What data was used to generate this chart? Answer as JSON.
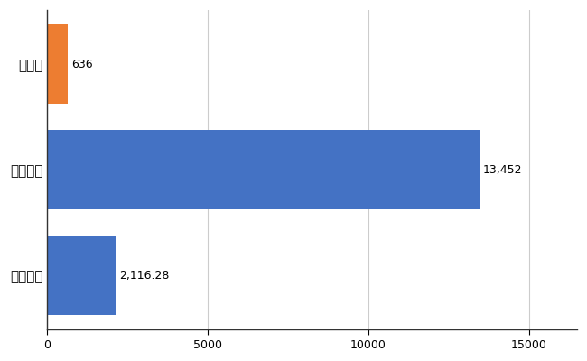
{
  "categories": [
    "全国平均",
    "全国最大",
    "島根県"
  ],
  "values": [
    2116.28,
    13452,
    636
  ],
  "bar_colors": [
    "#4472c4",
    "#4472c4",
    "#ed7d31"
  ],
  "labels": [
    "2,116.28",
    "13,452",
    "636"
  ],
  "xlim": [
    0,
    16500
  ],
  "xticks": [
    0,
    5000,
    10000,
    15000
  ],
  "xtick_labels": [
    "0",
    "5000",
    "10000",
    "15000"
  ],
  "background_color": "#ffffff",
  "grid_color": "#cccccc",
  "bar_height": 0.75,
  "label_fontsize": 9,
  "tick_fontsize": 9,
  "ytick_fontsize": 11
}
